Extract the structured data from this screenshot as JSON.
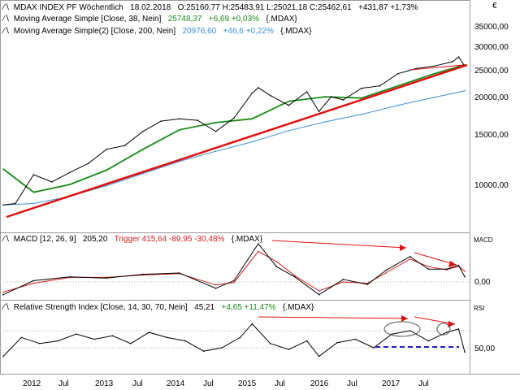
{
  "currency_symbol": "€",
  "price_panel": {
    "legend": [
      {
        "icon": "line-icon",
        "name": "MDAX INDEX PF Wöchentlich",
        "date": "18.02.2018",
        "ohlc": "O:25160,77 H:25483,91 L:25021,18 C:25462,61",
        "change": "+431,87 +1,73%",
        "color": "#000000"
      },
      {
        "icon": "line-icon",
        "name": "Moving Average Simple [Close, 38, Nein]",
        "value": "25748,37",
        "change": "+6,69 +0,03%",
        "symbol": "{.MDAX}",
        "color": "#1a8a1a"
      },
      {
        "icon": "line-icon",
        "name": "Moving Average Simple(2) [Close, 200, Nein]",
        "value": "20976,60",
        "change": "+46,6 +0,22%",
        "symbol": "{.MDAX}",
        "color": "#3a8fd8"
      }
    ],
    "y_ticks": [
      "35000,00",
      "30000,00",
      "25000,00",
      "20000,00",
      "15000,00",
      "10000,00"
    ]
  },
  "macd_panel": {
    "legend": {
      "name": "MACD [12, 26, 9]",
      "value": "205,20",
      "trigger": "Trigger 415,64 -89,95 -30,48%",
      "symbol": "{.MDAX}"
    },
    "axis_title": "MACD",
    "y_ticks": [
      "0,00"
    ]
  },
  "rsi_panel": {
    "legend": {
      "name": "Relative Strength Index [Close, 14, 30, 70, Nein]",
      "value": "45,21",
      "change": "+4,65 +11,47%",
      "symbol": "{.MDAX}"
    },
    "axis_title": "RSI",
    "y_ticks": [
      "50,00"
    ]
  },
  "x_ticks": [
    "2012",
    "Jul",
    "2013",
    "Jul",
    "2014",
    "Jul",
    "2015",
    "Jul",
    "2016",
    "Jul",
    "2017",
    "Jul"
  ],
  "chart_data": [
    {
      "type": "line",
      "title": "MDAX INDEX PF Wöchentlich",
      "x_range": [
        "2011-10",
        "2018-02"
      ],
      "ylim": [
        7000,
        37000
      ],
      "log_scale": true,
      "grid": false,
      "series": [
        {
          "name": "MDAX INDEX PF Wöchentlich",
          "color": "#000000",
          "x": [
            "2011-10",
            "2011-12",
            "2012-03",
            "2012-06",
            "2012-09",
            "2012-12",
            "2013-03",
            "2013-06",
            "2013-09",
            "2013-12",
            "2014-03",
            "2014-06",
            "2014-09",
            "2014-12",
            "2015-03",
            "2015-04",
            "2015-06",
            "2015-09",
            "2015-12",
            "2016-02",
            "2016-04",
            "2016-06",
            "2016-09",
            "2016-12",
            "2017-03",
            "2017-06",
            "2017-09",
            "2017-12",
            "2018-01",
            "2018-02"
          ],
          "values": [
            8500,
            8600,
            10800,
            10200,
            11000,
            11800,
            13200,
            13600,
            15200,
            16500,
            16800,
            16600,
            15200,
            16900,
            20600,
            21500,
            20200,
            18700,
            20800,
            17800,
            20000,
            19500,
            21400,
            21800,
            24000,
            25000,
            25500,
            26400,
            27400,
            25460
          ]
        },
        {
          "name": "Moving Average Simple [Close, 38, Nein]",
          "color": "#1a8a1a",
          "x": [
            "2011-10",
            "2012-03",
            "2012-09",
            "2013-03",
            "2013-09",
            "2014-03",
            "2014-09",
            "2015-03",
            "2015-09",
            "2016-03",
            "2016-09",
            "2017-03",
            "2017-09",
            "2018-02"
          ],
          "values": [
            11300,
            9400,
            10000,
            11200,
            13200,
            15400,
            16300,
            16800,
            19300,
            20000,
            19800,
            21800,
            24000,
            25748
          ]
        },
        {
          "name": "Moving Average Simple(2) [Close, 200, Nein]",
          "color": "#3a8fd8",
          "x": [
            "2011-10",
            "2012-03",
            "2012-09",
            "2013-03",
            "2013-09",
            "2014-03",
            "2014-09",
            "2015-03",
            "2015-09",
            "2016-03",
            "2016-09",
            "2017-03",
            "2017-09",
            "2018-02"
          ],
          "values": [
            8500,
            8600,
            9100,
            9900,
            10900,
            12000,
            13000,
            14000,
            15300,
            16400,
            17400,
            18700,
            19900,
            20977
          ]
        }
      ]
    },
    {
      "type": "line",
      "title": "MACD [12, 26, 9]",
      "ylim": [
        -800,
        1700
      ],
      "series": [
        {
          "name": "MACD [12, 26, 9]",
          "color": "#000000",
          "x": [
            "2011-10",
            "2012-03",
            "2012-09",
            "2013-03",
            "2013-09",
            "2014-03",
            "2014-09",
            "2014-12",
            "2015-04",
            "2015-07",
            "2015-10",
            "2016-02",
            "2016-06",
            "2016-10",
            "2017-01",
            "2017-05",
            "2017-08",
            "2017-11",
            "2018-01",
            "2018-02"
          ],
          "values": [
            -500,
            50,
            200,
            150,
            300,
            350,
            -250,
            50,
            1500,
            600,
            200,
            -500,
            100,
            -100,
            450,
            1000,
            500,
            500,
            650,
            205
          ]
        },
        {
          "name": "Trigger",
          "color": "#d42020",
          "x": [
            "2011-10",
            "2012-03",
            "2012-09",
            "2013-03",
            "2013-09",
            "2014-03",
            "2014-09",
            "2014-12",
            "2015-04",
            "2015-07",
            "2015-10",
            "2016-02",
            "2016-06",
            "2016-10",
            "2017-01",
            "2017-05",
            "2017-08",
            "2017-11",
            "2018-01",
            "2018-02"
          ],
          "values": [
            -400,
            -50,
            180,
            180,
            270,
            330,
            -120,
            -20,
            1200,
            800,
            250,
            -350,
            0,
            -50,
            350,
            900,
            600,
            480,
            620,
            416
          ]
        }
      ]
    },
    {
      "type": "line",
      "title": "Relative Strength Index [Close, 14, 30, 70, Nein]",
      "ylim": [
        25,
        80
      ],
      "series": [
        {
          "name": "Relative Strength Index [Close, 14, 30, 70, Nein]",
          "color": "#000000",
          "x": [
            "2011-10",
            "2012-01",
            "2012-04",
            "2012-07",
            "2012-10",
            "2013-01",
            "2013-04",
            "2013-07",
            "2013-10",
            "2014-01",
            "2014-04",
            "2014-07",
            "2014-10",
            "2015-01",
            "2015-03",
            "2015-06",
            "2015-09",
            "2015-12",
            "2016-02",
            "2016-05",
            "2016-08",
            "2016-11",
            "2017-02",
            "2017-05",
            "2017-08",
            "2017-11",
            "2018-01",
            "2018-02"
          ],
          "values": [
            40,
            62,
            55,
            58,
            66,
            60,
            64,
            55,
            68,
            62,
            58,
            46,
            50,
            62,
            78,
            55,
            48,
            58,
            40,
            56,
            60,
            50,
            66,
            70,
            58,
            68,
            72,
            45
          ]
        }
      ]
    }
  ]
}
